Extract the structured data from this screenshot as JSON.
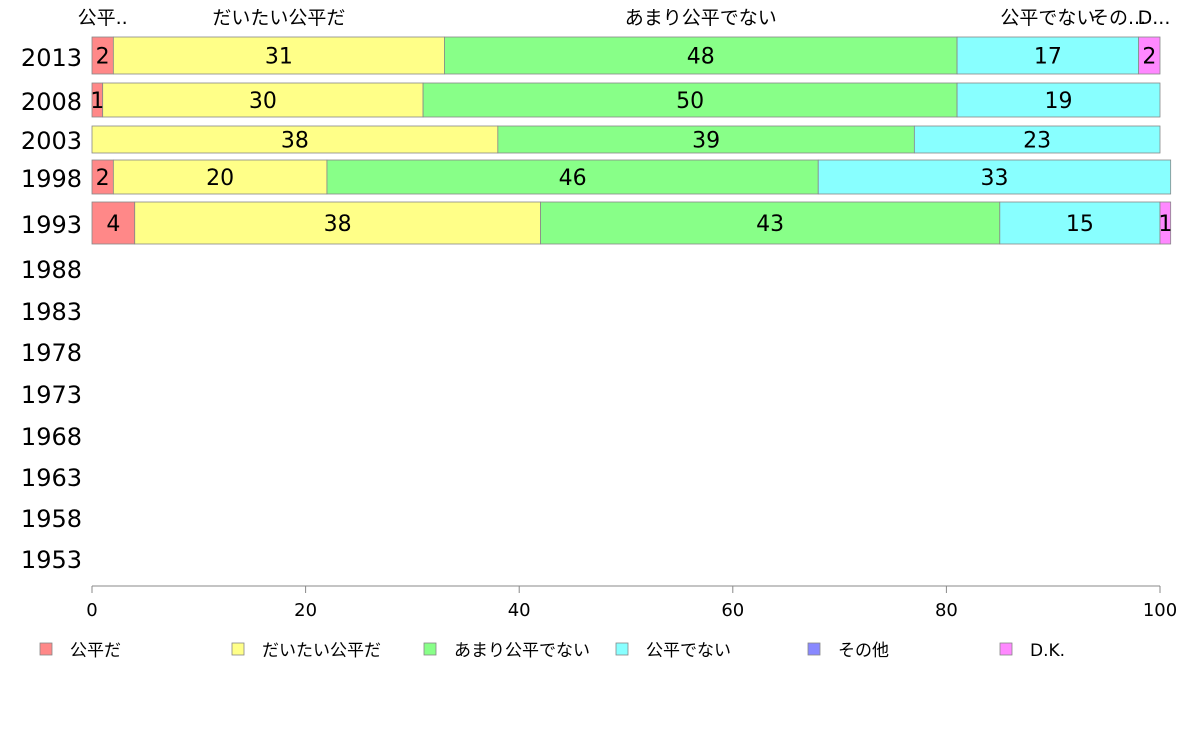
{
  "chart_data": {
    "type": "bar",
    "orientation": "horizontal",
    "stacked": true,
    "categories": [
      "2013",
      "2008",
      "2003",
      "1998",
      "1993",
      "1988",
      "1983",
      "1978",
      "1973",
      "1968",
      "1963",
      "1958",
      "1953"
    ],
    "series": [
      {
        "name": "公平だ",
        "color": "#ff8888",
        "values": [
          2,
          1,
          0,
          2,
          4,
          null,
          null,
          null,
          null,
          null,
          null,
          null,
          null
        ]
      },
      {
        "name": "だいたい公平だ",
        "color": "#ffff88",
        "values": [
          31,
          30,
          38,
          20,
          38,
          null,
          null,
          null,
          null,
          null,
          null,
          null,
          null
        ]
      },
      {
        "name": "あまり公平でない",
        "color": "#88ff88",
        "values": [
          48,
          50,
          39,
          46,
          43,
          null,
          null,
          null,
          null,
          null,
          null,
          null,
          null
        ]
      },
      {
        "name": "公平でない",
        "color": "#88ffff",
        "values": [
          17,
          19,
          23,
          33,
          15,
          null,
          null,
          null,
          null,
          null,
          null,
          null,
          null
        ]
      },
      {
        "name": "その他",
        "color": "#8888ff",
        "values": [
          0,
          0,
          0,
          0,
          0,
          null,
          null,
          null,
          null,
          null,
          null,
          null,
          null
        ]
      },
      {
        "name": "D.K.",
        "color": "#ff88ff",
        "values": [
          2,
          0,
          0,
          0,
          1,
          null,
          null,
          null,
          null,
          null,
          null,
          null,
          null
        ]
      }
    ],
    "top_headers": [
      "公平..",
      "だいたい公平だ",
      "あまり公平でない",
      "公平でない",
      "その...",
      "D..."
    ],
    "xlim": [
      0,
      100
    ],
    "xticks": [
      0,
      20,
      40,
      60,
      80,
      100
    ],
    "title": "",
    "xlabel": "",
    "ylabel": "",
    "grid": false,
    "legend_position": "bottom"
  }
}
